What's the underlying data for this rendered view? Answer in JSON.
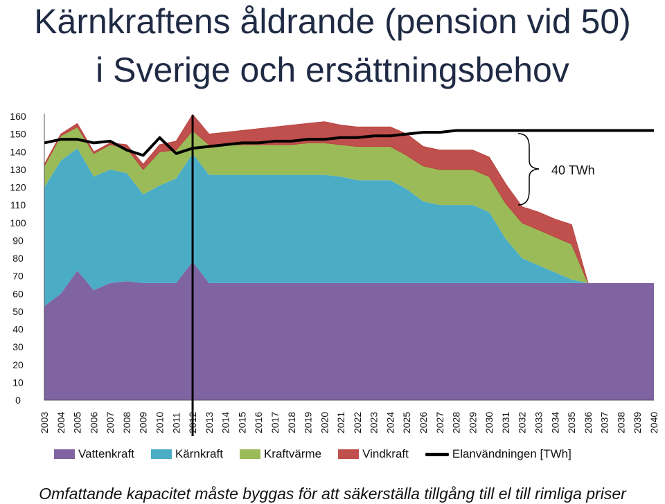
{
  "page": {
    "title_line1": "Kärnkraftens åldrande (pension vid 50)",
    "title_line2": "i Sverige och ersättningsbehov",
    "footer": "Omfattande kapacitet måste byggas för att säkerställa tillgång till el till rimliga priser"
  },
  "chart_data": {
    "type": "area",
    "stacked": true,
    "categories": [
      "2003",
      "2004",
      "2005",
      "2006",
      "2007",
      "2008",
      "2009",
      "2010",
      "2011",
      "2012",
      "2013",
      "2014",
      "2015",
      "2016",
      "2017",
      "2018",
      "2019",
      "2020",
      "2021",
      "2022",
      "2023",
      "2024",
      "2025",
      "2026",
      "2027",
      "2028",
      "2029",
      "2030",
      "2031",
      "2032",
      "2033",
      "2034",
      "2035",
      "2036",
      "2037",
      "2038",
      "2039",
      "2040"
    ],
    "ylim": [
      0,
      160
    ],
    "yticks": [
      0,
      10,
      20,
      30,
      40,
      50,
      60,
      70,
      80,
      90,
      100,
      110,
      120,
      130,
      140,
      150,
      160
    ],
    "series": [
      {
        "name": "Vattenkraft",
        "color": "#8064a2",
        "values": [
          53,
          60,
          73,
          62,
          66,
          67,
          66,
          66,
          66,
          78,
          66,
          66,
          66,
          66,
          66,
          66,
          66,
          66,
          66,
          66,
          66,
          66,
          66,
          66,
          66,
          66,
          66,
          66,
          66,
          66,
          66,
          66,
          66,
          66,
          66,
          66,
          66,
          66
        ]
      },
      {
        "name": "Kärnkraft",
        "color": "#4bacc6",
        "values": [
          67,
          75,
          69,
          64,
          64,
          61,
          50,
          55,
          59,
          61,
          61,
          61,
          61,
          61,
          61,
          61,
          61,
          61,
          60,
          58,
          58,
          58,
          53,
          46,
          44,
          44,
          44,
          40,
          25,
          14,
          10,
          6,
          2,
          0,
          0,
          0,
          0,
          0
        ]
      },
      {
        "name": "Kraftvärme",
        "color": "#9bbb59",
        "values": [
          12,
          14,
          12,
          13,
          14,
          14,
          14,
          19,
          16,
          13,
          17,
          17,
          17,
          17,
          17,
          17,
          18,
          18,
          18,
          19,
          19,
          19,
          19,
          20,
          20,
          20,
          20,
          20,
          20,
          20,
          20,
          20,
          20,
          0,
          0,
          0,
          0,
          0
        ]
      },
      {
        "name": "Vindkraft",
        "color": "#c0504d",
        "values": [
          1,
          1,
          2,
          1,
          1,
          2,
          3,
          4,
          5,
          9,
          6,
          7,
          8,
          9,
          10,
          11,
          11,
          12,
          11,
          11,
          11,
          11,
          12,
          11,
          11,
          11,
          11,
          11,
          11,
          9,
          10,
          10,
          11,
          0,
          0,
          0,
          0,
          0
        ]
      }
    ],
    "line_series": {
      "name": "Elanvändningen [TWh]",
      "color": "#000000",
      "values": [
        145,
        147,
        147,
        145,
        146,
        141,
        138,
        148,
        139,
        142,
        143,
        144,
        145,
        145,
        146,
        146,
        147,
        147,
        148,
        148,
        149,
        149,
        150,
        151,
        151,
        152,
        152,
        152,
        152,
        152,
        152,
        152,
        152,
        152,
        152,
        152,
        152,
        152
      ]
    },
    "marker_year": "2012",
    "annotation": "40 TWh",
    "legend": [
      "Vattenkraft",
      "Kärnkraft",
      "Kraftvärme",
      "Vindkraft",
      "Elanvändningen [TWh]"
    ]
  }
}
